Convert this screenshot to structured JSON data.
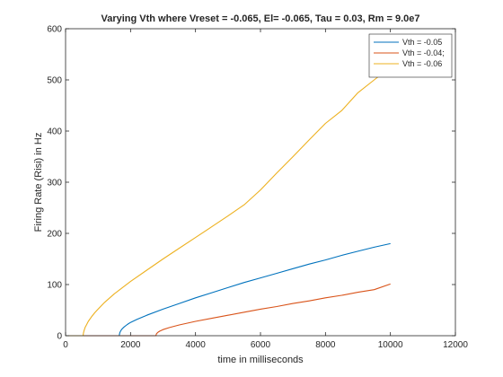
{
  "chart_data": {
    "type": "line",
    "title": "Varying Vth where Vreset = -0.065, El= -0.065, Tau = 0.03, Rm = 9.0e7",
    "xlabel": "time in milliseconds",
    "ylabel": "Firing Rate (Risi) in Hz",
    "xlim": [
      0,
      12000
    ],
    "ylim": [
      0,
      600
    ],
    "xticks": [
      0,
      2000,
      4000,
      6000,
      8000,
      10000,
      12000
    ],
    "yticks": [
      0,
      100,
      200,
      300,
      400,
      500,
      600
    ],
    "grid": false,
    "legend_position": "top-right",
    "series": [
      {
        "name": "Vth = -0.05",
        "color": "#0072BD",
        "x": [
          0,
          1650,
          1670,
          1700,
          1750,
          1800,
          1900,
          2000,
          2200,
          2500,
          3000,
          3500,
          4000,
          4500,
          5000,
          5500,
          6000,
          6500,
          7000,
          7500,
          8000,
          8500,
          9000,
          9500,
          10000
        ],
        "y": [
          0,
          0,
          6,
          10,
          14,
          17,
          22,
          26,
          32,
          40,
          52,
          63,
          74,
          84,
          94,
          104,
          113,
          122,
          131,
          140,
          148,
          157,
          165,
          173,
          180
        ]
      },
      {
        "name": "Vth = -0.04;",
        "color": "#D95319",
        "x": [
          0,
          2780,
          2800,
          2850,
          2900,
          3000,
          3200,
          3500,
          4000,
          4500,
          5000,
          5500,
          6000,
          6500,
          7000,
          7500,
          8000,
          8500,
          9000,
          9500,
          10000
        ],
        "y": [
          0,
          0,
          4,
          7,
          9,
          12,
          16,
          21,
          28,
          34,
          40,
          46,
          52,
          57,
          63,
          68,
          74,
          79,
          85,
          90,
          101
        ]
      },
      {
        "name": "Vth = -0.06",
        "color": "#EDB120",
        "x": [
          0,
          540,
          550,
          570,
          600,
          650,
          700,
          800,
          900,
          1000,
          1200,
          1500,
          2000,
          2500,
          3000,
          3500,
          4000,
          4500,
          5000,
          5500,
          6000,
          6500,
          7000,
          7500,
          8000,
          8500,
          9000,
          9500,
          10000
        ],
        "y": [
          0,
          0,
          5,
          10,
          16,
          22,
          28,
          37,
          45,
          52,
          65,
          82,
          106,
          128,
          150,
          171,
          192,
          213,
          234,
          256,
          285,
          318,
          350,
          383,
          415,
          440,
          475,
          500,
          525
        ]
      }
    ]
  }
}
